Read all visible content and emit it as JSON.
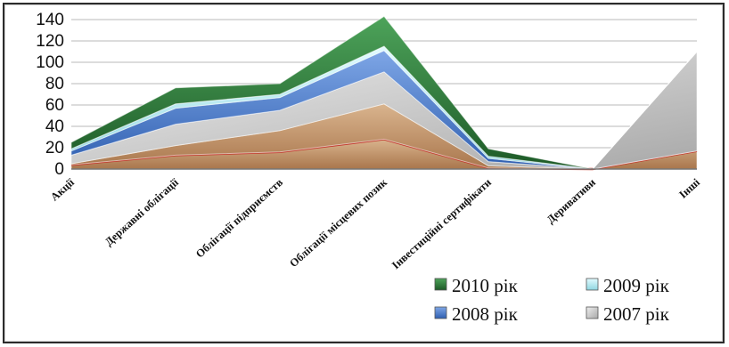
{
  "chart_data": {
    "type": "area",
    "stacked": true,
    "categories": [
      "Акції",
      "Державні облігації",
      "Облігації підприємств",
      "Облігації місцевих позик",
      "Інвестиційні сертифікати",
      "Деривативи",
      "Інші"
    ],
    "series": [
      {
        "name": "2007 рік",
        "values": [
          8,
          20,
          19,
          30,
          4,
          0,
          93
        ],
        "color": "#c9c9c9"
      },
      {
        "name": "2008 рік",
        "values": [
          4,
          15,
          12,
          20,
          3,
          0,
          0
        ],
        "color": "#4f7fcf"
      },
      {
        "name": "2009 рік",
        "values": [
          2,
          4,
          3,
          4,
          2,
          0,
          0
        ],
        "color": "#a9e3ea"
      },
      {
        "name": "2010 рік",
        "values": [
          6,
          15,
          10,
          28,
          7,
          0,
          0
        ],
        "color": "#2f7a3a"
      }
    ],
    "base_layers": [
      {
        "values": [
          4,
          13,
          16,
          28,
          1,
          0,
          17
        ],
        "color": "#c9a27a"
      },
      {
        "values": [
          1,
          9,
          20,
          33,
          2,
          0,
          0
        ],
        "color": "#b98c5f"
      }
    ],
    "ylim": [
      0,
      140
    ],
    "yticks": [
      "0",
      "20",
      "40",
      "60",
      "80",
      "100",
      "120",
      "140"
    ],
    "grid": true,
    "legend": "bottom-right"
  }
}
